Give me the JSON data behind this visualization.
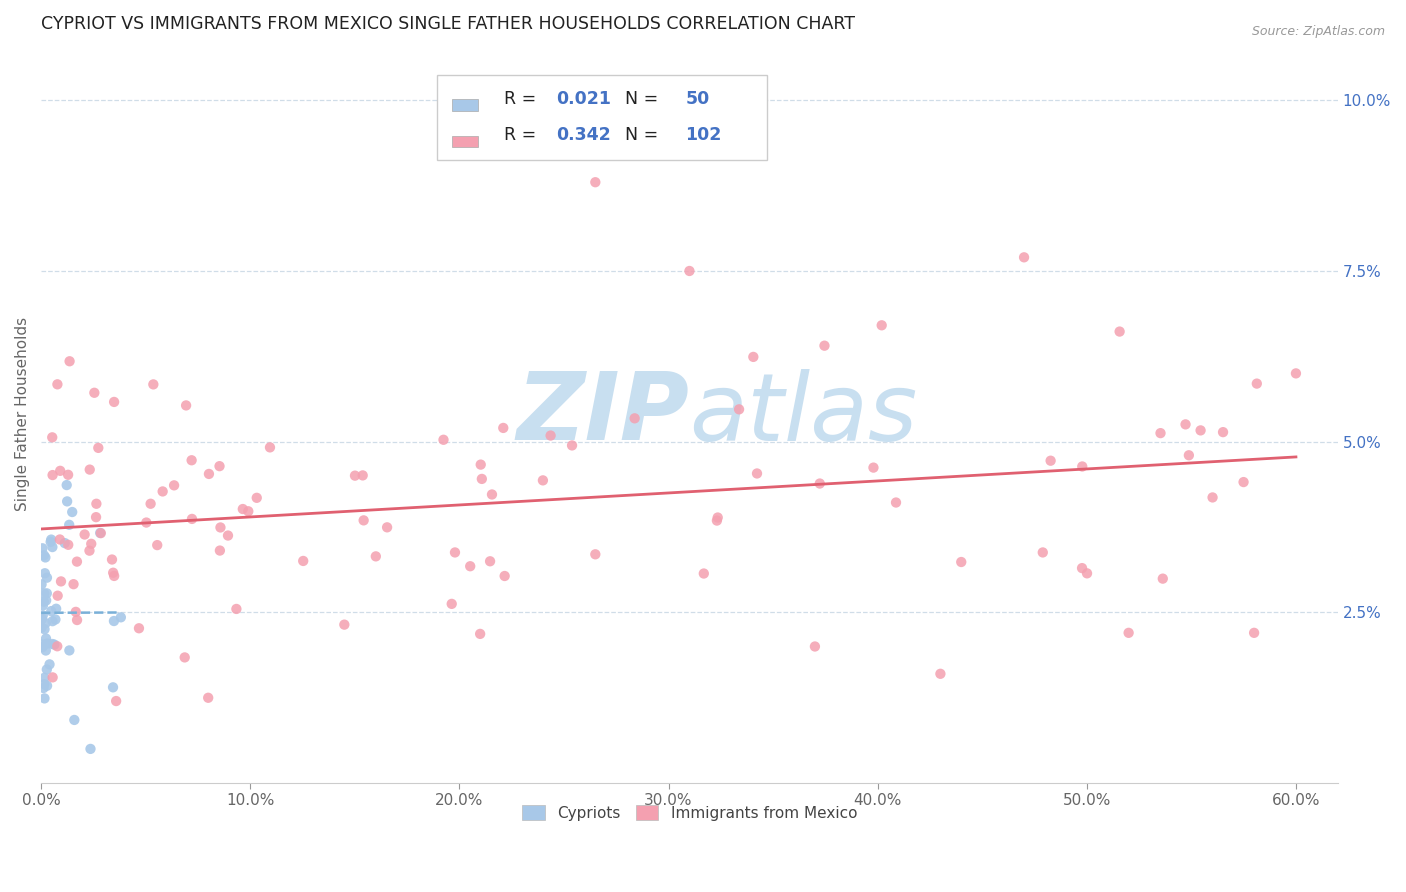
{
  "title": "CYPRIOT VS IMMIGRANTS FROM MEXICO SINGLE FATHER HOUSEHOLDS CORRELATION CHART",
  "source": "Source: ZipAtlas.com",
  "ylabel": "Single Father Households",
  "legend_label1": "Cypriots",
  "legend_label2": "Immigrants from Mexico",
  "R1": 0.021,
  "N1": 50,
  "R2": 0.342,
  "N2": 102,
  "color_cypriot": "#a8c8e8",
  "color_mexico": "#f4a0b0",
  "color_text_blue": "#4472c4",
  "color_trendline_cypriot": "#7ab0d8",
  "color_trendline_mexico": "#e06070",
  "watermark_color": "#c8dff0",
  "grid_color": "#d0dde8",
  "xlim": [
    0.0,
    0.62
  ],
  "ylim": [
    0.0,
    0.108
  ],
  "xticks": [
    0.0,
    0.1,
    0.2,
    0.3,
    0.4,
    0.5,
    0.6
  ],
  "xtick_labels": [
    "0.0%",
    "10.0%",
    "20.0%",
    "30.0%",
    "40.0%",
    "50.0%",
    "60.0%"
  ],
  "yticks": [
    0.025,
    0.05,
    0.075,
    0.1
  ],
  "ytick_labels": [
    "2.5%",
    "5.0%",
    "7.5%",
    "10.0%"
  ]
}
